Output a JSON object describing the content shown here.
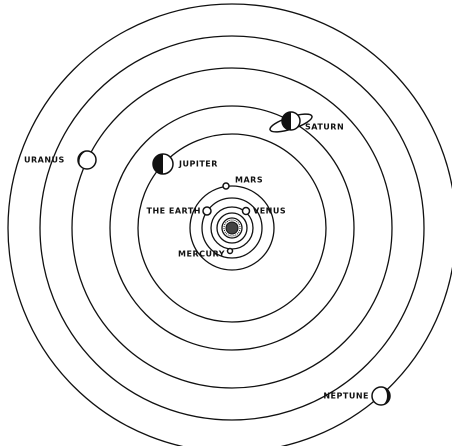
{
  "labels": {
    "uranus": "URANUS",
    "jupiter": "JUPITER",
    "saturn": "SATURN",
    "mars": "MARS",
    "earth": "THE EARTH",
    "venus": "VENUS",
    "mercury": "MERCURY",
    "neptune": "NEPTUNE"
  }
}
